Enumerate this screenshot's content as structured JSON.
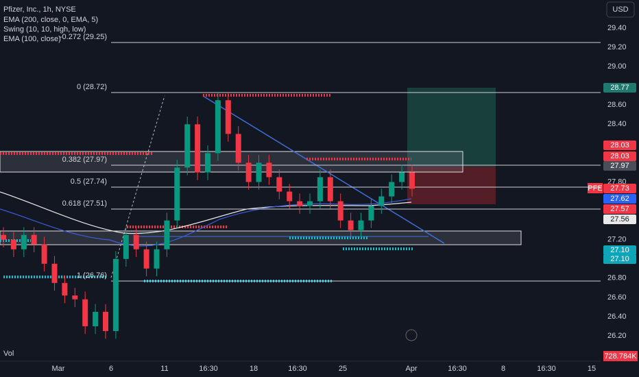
{
  "header": {
    "title": "Pfizer, Inc., 1h, NYSE",
    "indicators": [
      "EMA (200, close, 0, EMA, 5)",
      "Swing (10, 10, high, low)",
      "EMA (100, close)"
    ]
  },
  "currency": "USD",
  "fib_levels": [
    "-0.272 (29.25)",
    "0 (28.72)",
    "0.382 (27.97)",
    "0.5 (27.74)",
    "0.618 (27.51)",
    "1 (26.76)"
  ],
  "yticks": [
    {
      "value": 29.4,
      "label": "29.40"
    },
    {
      "value": 29.2,
      "label": "29.20"
    },
    {
      "value": 29.0,
      "label": "29.00"
    },
    {
      "value": 28.6,
      "label": "28.60"
    },
    {
      "value": 28.4,
      "label": "28.40"
    },
    {
      "value": 27.8,
      "label": "27.80"
    },
    {
      "value": 27.2,
      "label": "27.20"
    },
    {
      "value": 26.8,
      "label": "26.80"
    },
    {
      "value": 26.6,
      "label": "26.60"
    },
    {
      "value": 26.4,
      "label": "26.40"
    },
    {
      "value": 26.2,
      "label": "26.20"
    }
  ],
  "badges": [
    {
      "label": "28.77",
      "color": "#1e7a6e"
    },
    {
      "label": "28.03",
      "color": "#f23645"
    },
    {
      "label": "28.03",
      "color": "#f23645"
    },
    {
      "label": "27.97",
      "color": "#4a4e59"
    },
    {
      "label": "27.73",
      "color": "#f23645"
    },
    {
      "label": "27.62",
      "color": "#2962ff"
    },
    {
      "label": "27.57",
      "color": "#f23645"
    },
    {
      "label": "27.56",
      "color": "#e8e8e8"
    },
    {
      "label": "27.10",
      "color": "#0fa5b8"
    },
    {
      "label": "27.10",
      "color": "#0fa5b8"
    }
  ],
  "symbol": "PFE",
  "volume_label": "Vol",
  "volume_value": "728.784K",
  "time_labels": [
    "Mar",
    "6",
    "11",
    "16:30",
    "18",
    "16:30",
    "25",
    "Apr",
    "16:30",
    "8",
    "16:30",
    "15"
  ],
  "candles": {
    "open": [
      27.25,
      27.2,
      27.1,
      27.25,
      27.15,
      26.95,
      26.75,
      26.62,
      26.58,
      26.3,
      26.45,
      26.25,
      27.0,
      27.25,
      27.1,
      26.9,
      27.1,
      27.4,
      27.95,
      28.4,
      27.9,
      28.1,
      28.65,
      28.3,
      28.0,
      27.8,
      28.0,
      27.85,
      27.7,
      27.6,
      27.55,
      27.6,
      27.85,
      27.6,
      27.4,
      27.3,
      27.4,
      27.55,
      27.65,
      27.8,
      27.9
    ],
    "high": [
      27.33,
      27.28,
      27.33,
      27.33,
      27.23,
      27.03,
      26.83,
      26.7,
      26.66,
      26.53,
      26.53,
      27.08,
      27.33,
      27.33,
      27.18,
      27.18,
      27.48,
      28.03,
      28.48,
      28.48,
      28.18,
      28.73,
      28.73,
      28.38,
      28.08,
      28.08,
      28.08,
      27.93,
      27.78,
      27.68,
      27.68,
      27.93,
      27.93,
      27.68,
      27.48,
      27.48,
      27.63,
      27.73,
      27.88,
      27.98,
      27.98
    ],
    "low": [
      27.12,
      27.02,
      27.02,
      27.07,
      26.87,
      26.67,
      26.54,
      26.5,
      26.22,
      26.22,
      26.17,
      26.17,
      26.92,
      27.02,
      26.82,
      26.82,
      27.02,
      27.32,
      27.87,
      27.82,
      27.82,
      28.02,
      28.22,
      27.92,
      27.72,
      27.72,
      27.77,
      27.62,
      27.52,
      27.47,
      27.47,
      27.52,
      27.52,
      27.32,
      27.22,
      27.22,
      27.32,
      27.47,
      27.57,
      27.72,
      27.65
    ],
    "close": [
      27.2,
      27.1,
      27.25,
      27.15,
      26.95,
      26.75,
      26.62,
      26.58,
      26.3,
      26.45,
      26.25,
      27.0,
      27.25,
      27.1,
      26.9,
      27.1,
      27.4,
      27.95,
      28.4,
      27.9,
      28.1,
      28.65,
      28.3,
      28.0,
      27.8,
      28.0,
      27.85,
      27.7,
      27.6,
      27.55,
      27.6,
      27.85,
      27.6,
      27.4,
      27.3,
      27.4,
      27.55,
      27.65,
      27.8,
      27.9,
      27.73
    ]
  }
}
